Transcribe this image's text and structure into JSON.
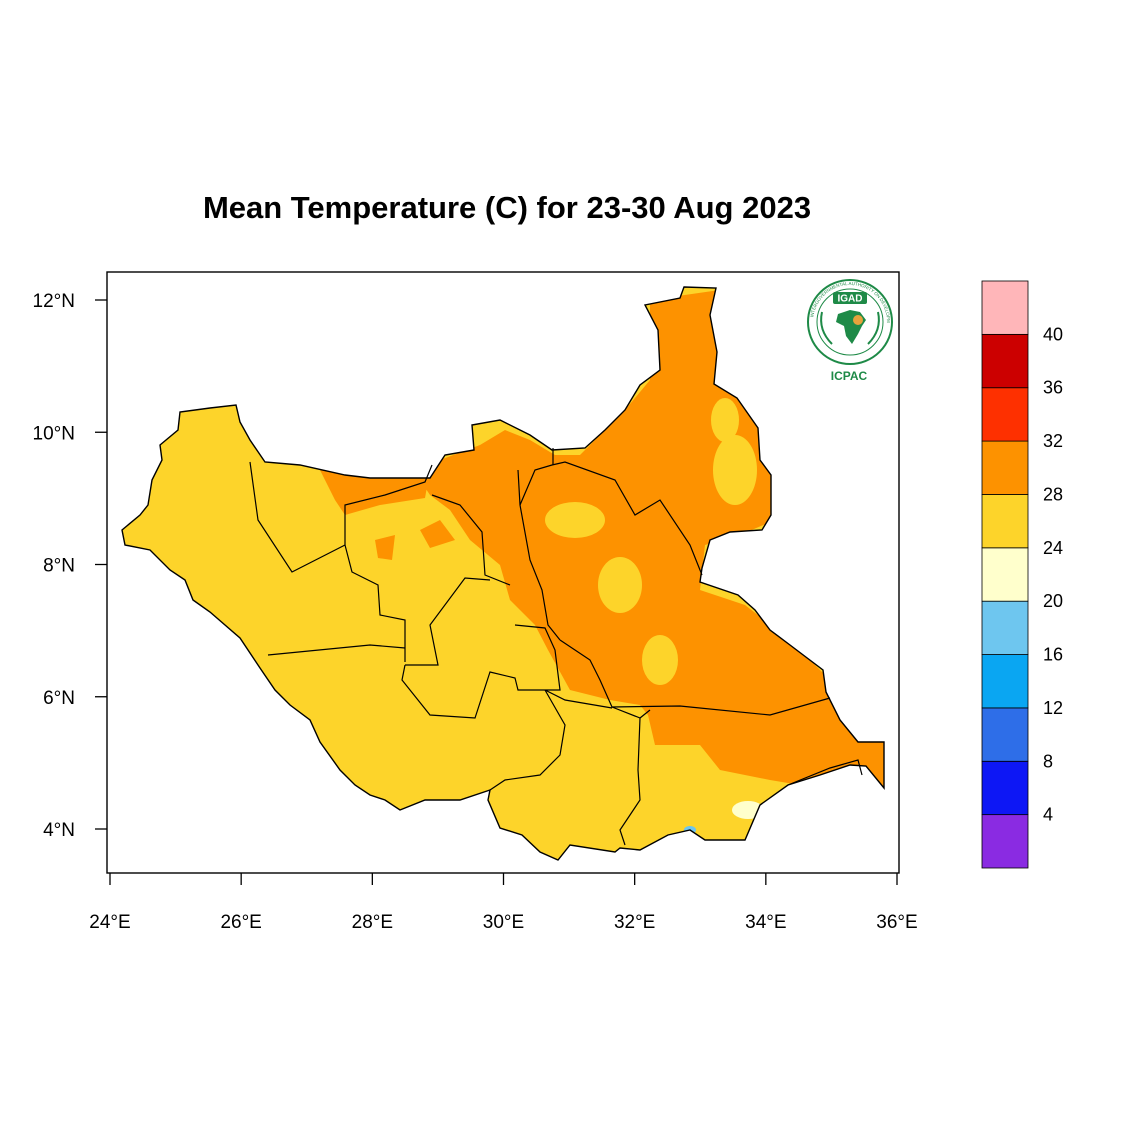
{
  "title": "Mean Temperature (C) for 23-30 Aug 2023",
  "map": {
    "lon_range": [
      24,
      36
    ],
    "lat_range": [
      3.4,
      12.4
    ],
    "lon_ticks": [
      {
        "value": 24,
        "label": "24°E"
      },
      {
        "value": 26,
        "label": "26°E"
      },
      {
        "value": 28,
        "label": "28°E"
      },
      {
        "value": 30,
        "label": "30°E"
      },
      {
        "value": 32,
        "label": "32°E"
      },
      {
        "value": 34,
        "label": "34°E"
      },
      {
        "value": 36,
        "label": "36°E"
      }
    ],
    "lat_ticks": [
      {
        "value": 4,
        "label": "4°N"
      },
      {
        "value": 6,
        "label": "6°N"
      },
      {
        "value": 8,
        "label": "8°N"
      },
      {
        "value": 10,
        "label": "10°N"
      },
      {
        "value": 12,
        "label": "12°N"
      }
    ]
  },
  "colorbar": {
    "colors": [
      "#8a2be2",
      "#0d17f5",
      "#2e6ee8",
      "#0aa6f2",
      "#6ec6ef",
      "#ffffcc",
      "#fdd42a",
      "#fd9200",
      "#fe3000",
      "#cc0000",
      "#ffb6b9"
    ],
    "labels": [
      "4",
      "8",
      "12",
      "16",
      "20",
      "24",
      "28",
      "32",
      "36",
      "40"
    ]
  },
  "logo": {
    "name": "IGAD",
    "org": "ICPAC",
    "ring_text": "INTERGOVERNMENTAL AUTHORITY ON DEVELOPMENT",
    "color": "#1e8a47"
  },
  "palette": {
    "warm": "#fdd42a",
    "hot": "#fd9200",
    "cool": "#ffffcc",
    "cold": "#6ec6ef",
    "border": "#000000"
  }
}
